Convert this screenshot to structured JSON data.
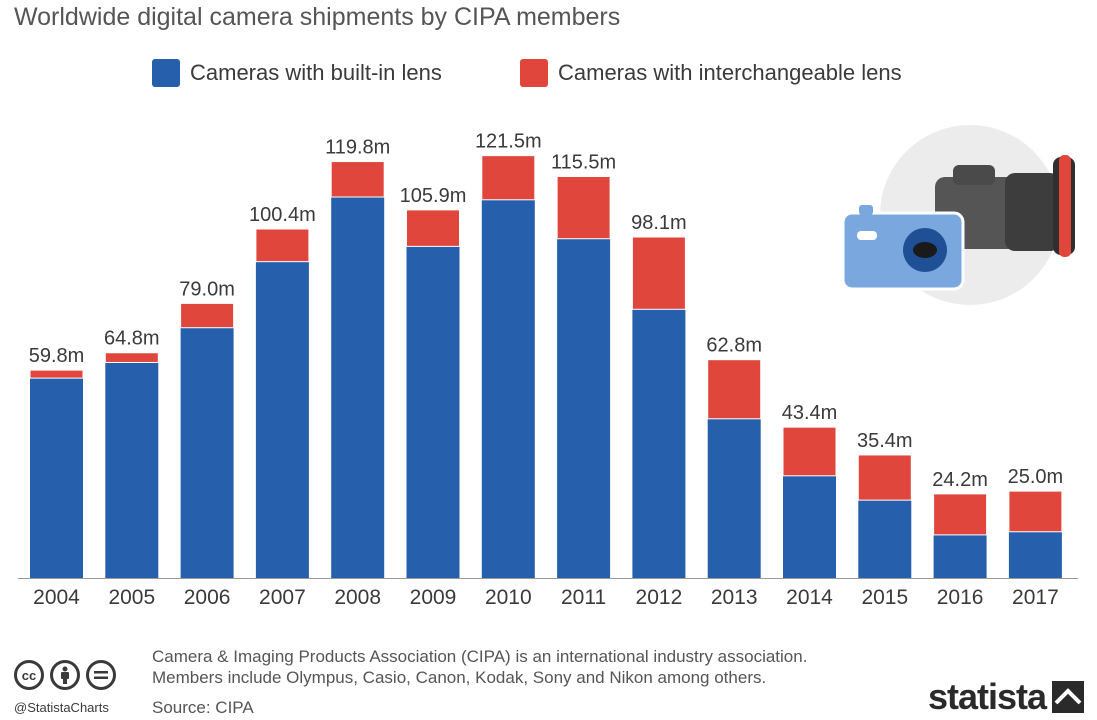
{
  "chart_data": {
    "type": "bar",
    "stacked": true,
    "title": "Worldwide digital camera shipments by CIPA members",
    "categories": [
      "2004",
      "2005",
      "2006",
      "2007",
      "2008",
      "2009",
      "2010",
      "2011",
      "2012",
      "2013",
      "2014",
      "2015",
      "2016",
      "2017"
    ],
    "series": [
      {
        "name": "Cameras with built-in lens",
        "color": "#2660ad",
        "values": [
          57.5,
          62.0,
          72.0,
          91.0,
          109.6,
          95.4,
          108.8,
          97.6,
          77.3,
          45.8,
          29.4,
          22.4,
          12.4,
          13.3
        ]
      },
      {
        "name": "Cameras with interchangeable lens",
        "color": "#e0463c",
        "values": [
          2.3,
          2.8,
          7.0,
          9.4,
          10.2,
          10.5,
          12.7,
          17.9,
          20.8,
          17.0,
          14.0,
          13.0,
          11.8,
          11.7
        ]
      }
    ],
    "totals_labels": [
      "59.8m",
      "64.8m",
      "79.0m",
      "100.4m",
      "119.8m",
      "105.9m",
      "121.5m",
      "115.5m",
      "98.1m",
      "62.8m",
      "43.4m",
      "35.4m",
      "24.2m",
      "25.0m"
    ],
    "totals": [
      59.8,
      64.8,
      79.0,
      100.4,
      119.8,
      105.9,
      121.5,
      115.5,
      98.1,
      62.8,
      43.4,
      35.4,
      24.2,
      25.0
    ],
    "ylim": [
      0,
      126
    ],
    "grid": false,
    "legend_position": "top"
  },
  "footer": {
    "note_line1": "Camera & Imaging Products Association (CIPA) is an international industry association.",
    "note_line2": "Members include Olympus, Casio, Canon, Kodak, Sony and Nikon among others.",
    "source": "Source: CIPA",
    "handle": "@StatistaCharts",
    "brand": "statista",
    "cc_icons": [
      "cc-icon",
      "by-icon",
      "nd-icon"
    ]
  }
}
